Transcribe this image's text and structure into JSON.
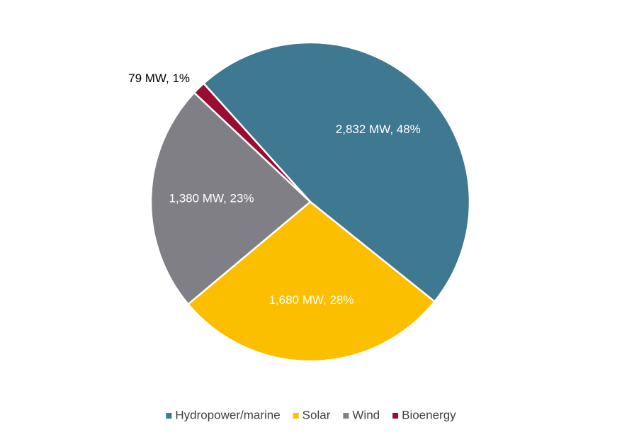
{
  "chart_data": {
    "type": "pie",
    "categories": [
      "Hydropower/marine",
      "Solar",
      "Wind",
      "Bioenergy"
    ],
    "values": [
      2832,
      1680,
      1380,
      79
    ],
    "value_labels": [
      "2,832 MW, 48%",
      "1,680 MW, 28%",
      "1,380 MW, 23%",
      "79 MW, 1%"
    ],
    "colors": [
      "#3e7891",
      "#fcbf00",
      "#7f7f85",
      "#9b0d30"
    ],
    "legend": "bottom"
  }
}
